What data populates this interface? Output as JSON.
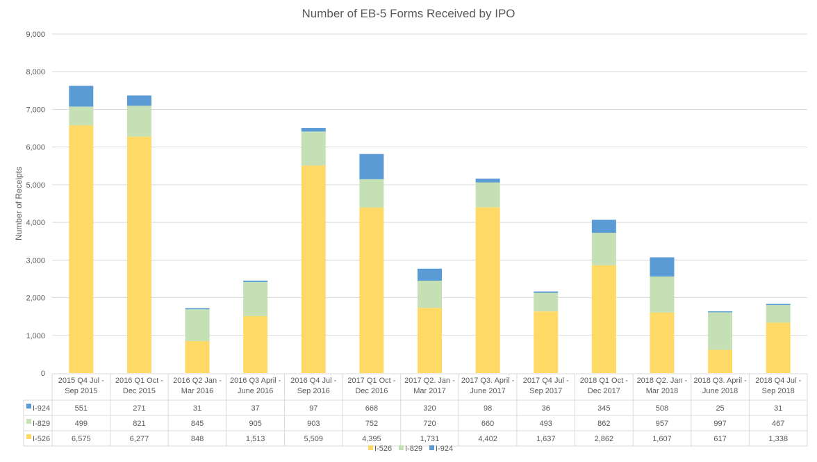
{
  "chart_data": {
    "type": "bar",
    "stacked": true,
    "title": "Number of EB-5 Forms Received by IPO",
    "xlabel": "",
    "ylabel": "Number of Receipts",
    "ylim": [
      0,
      9000
    ],
    "yticks": [
      "0",
      "1,000",
      "2,000",
      "3,000",
      "4,000",
      "5,000",
      "6,000",
      "7,000",
      "8,000",
      "9,000"
    ],
    "grid": true,
    "legend": "bottom",
    "data_table": true,
    "categories": [
      [
        "2015 Q4 Jul -",
        "Sep 2015"
      ],
      [
        "2016 Q1 Oct -",
        "Dec 2015"
      ],
      [
        "2016 Q2 Jan -",
        "Mar 2016"
      ],
      [
        "2016 Q3 April -",
        "June 2016"
      ],
      [
        "2016 Q4 Jul -",
        "Sep 2016"
      ],
      [
        "2017 Q1 Oct -",
        "Dec 2016"
      ],
      [
        "2017 Q2. Jan -",
        "Mar 2017"
      ],
      [
        "2017 Q3. April -",
        "June 2017"
      ],
      [
        "2017 Q4 Jul -",
        "Sep 2017"
      ],
      [
        "2018 Q1 Oct -",
        "Dec 2017"
      ],
      [
        "2018 Q2. Jan -",
        "Mar 2018"
      ],
      [
        "2018 Q3. April -",
        "June 2018"
      ],
      [
        "2018 Q4 Jul -",
        "Sep 2018"
      ]
    ],
    "series": [
      {
        "name": "I-526",
        "color": "#FFD966",
        "values": [
          6575,
          6277,
          848,
          1513,
          5509,
          4395,
          1731,
          4402,
          1637,
          2862,
          1607,
          617,
          1338
        ]
      },
      {
        "name": "I-829",
        "color": "#C5E0B4",
        "values": [
          499,
          821,
          845,
          905,
          903,
          752,
          720,
          660,
          493,
          862,
          957,
          997,
          467
        ]
      },
      {
        "name": "I-924",
        "color": "#5B9BD5",
        "values": [
          551,
          271,
          31,
          37,
          97,
          668,
          320,
          98,
          36,
          345,
          508,
          25,
          31
        ]
      }
    ]
  }
}
